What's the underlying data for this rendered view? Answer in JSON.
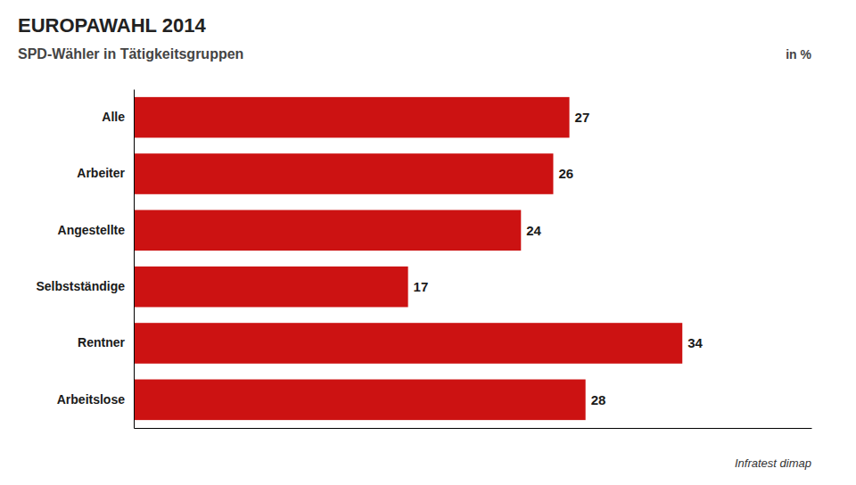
{
  "chart_data": {
    "type": "bar",
    "orientation": "horizontal",
    "title": "EUROPAWAHL 2014",
    "subtitle": "SPD-Wähler in Tätigkeitsgruppen",
    "xlabel": "in %",
    "source": "Infratest dimap",
    "categories": [
      "Alle",
      "Arbeiter",
      "Angestellte",
      "Selbstständige",
      "Rentner",
      "Arbeitslose"
    ],
    "values": [
      27,
      26,
      24,
      17,
      34,
      28
    ],
    "color": "#cc1212",
    "xlim": [
      0,
      42
    ],
    "data_labels": true,
    "tick_labels": "y",
    "grid": false
  }
}
